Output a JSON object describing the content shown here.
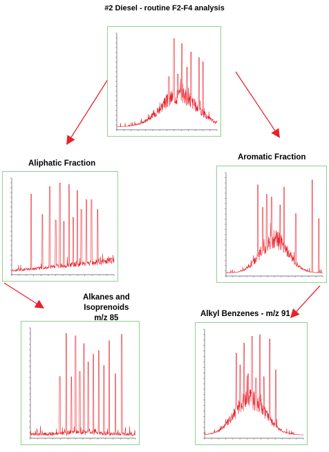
{
  "page_title": "#2 Diesel - routine F2-F4 analysis",
  "fractions": {
    "aliphatic": "Aliphatic Fraction",
    "aromatic": "Aromatic Fraction",
    "alkanes_line1": "Alkanes and",
    "alkanes_line2": "Isoprenoids",
    "alkanes_line3": "m/z 85",
    "alkyl_benzenes": "Alkyl Benzenes - m/z 91"
  },
  "colors": {
    "trace": "#e8202a",
    "arrow": "#e8202a",
    "frame": "#8fcf8f",
    "axis": "#555555"
  },
  "chart_data": [
    {
      "id": "diesel",
      "type": "line",
      "title": "",
      "xlabel": "",
      "ylabel": "",
      "profile": "hump",
      "envelope_center": 0.62,
      "envelope_width": 0.26,
      "major_peaks": [
        0.52,
        0.57,
        0.61,
        0.65,
        0.7,
        0.74,
        0.82,
        0.86
      ],
      "ylim": [
        0,
        1
      ]
    },
    {
      "id": "aliphatic",
      "type": "line",
      "title": "",
      "xlabel": "",
      "ylabel": "",
      "profile": "rising-baseline",
      "envelope_center": 0.55,
      "envelope_width": 0.3,
      "major_peaks": [
        0.19,
        0.3,
        0.37,
        0.43,
        0.47,
        0.51,
        0.56,
        0.6,
        0.64,
        0.68,
        0.73,
        0.78,
        0.84
      ],
      "ylim": [
        0,
        1
      ]
    },
    {
      "id": "aromatic",
      "type": "line",
      "title": "",
      "xlabel": "",
      "ylabel": "",
      "profile": "hump",
      "envelope_center": 0.5,
      "envelope_width": 0.2,
      "major_peaks": [
        0.33,
        0.38,
        0.42,
        0.47,
        0.56,
        0.6,
        0.72,
        0.89,
        0.96
      ],
      "ylim": [
        0,
        1
      ]
    },
    {
      "id": "alkanes",
      "type": "line",
      "title": "",
      "xlabel": "",
      "ylabel": "",
      "profile": "flat-baseline",
      "envelope_center": 0.5,
      "envelope_width": 0.24,
      "major_peaks": [
        0.28,
        0.34,
        0.39,
        0.43,
        0.47,
        0.51,
        0.55,
        0.6,
        0.65,
        0.7,
        0.75,
        0.81,
        0.87
      ],
      "ylim": [
        0,
        1
      ]
    },
    {
      "id": "alkyl_benzenes",
      "type": "line",
      "title": "",
      "xlabel": "",
      "ylabel": "",
      "profile": "hump",
      "envelope_center": 0.46,
      "envelope_width": 0.22,
      "major_peaks": [
        0.32,
        0.36,
        0.4,
        0.44,
        0.48,
        0.52,
        0.56,
        0.6,
        0.66,
        0.72
      ],
      "ylim": [
        0,
        1
      ]
    }
  ]
}
